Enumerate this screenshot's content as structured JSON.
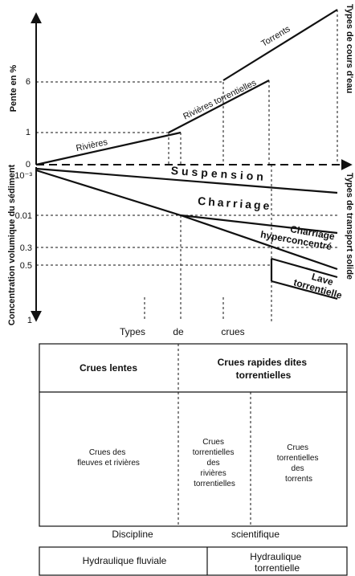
{
  "diagram": {
    "slope_axis": {
      "label": "Pente en %",
      "ticks": [
        "0",
        "1",
        "6"
      ]
    },
    "concentration_axis": {
      "label": "Concentration volumique du sédiment",
      "ticks": [
        "10⁻³",
        "0.01",
        "0.3",
        "0.5",
        "1"
      ]
    },
    "right_labels": [
      "Types de cours d'eau",
      "Types de transport solide"
    ],
    "river_types": [
      "Rivières",
      "Rivières torrentielles",
      "Torrents"
    ],
    "transport_types": [
      "Suspension",
      "Charriage",
      [
        "Charriage",
        "hyperconcentré"
      ],
      [
        "Lave",
        "torrentielle"
      ]
    ],
    "flood_types_caption": [
      "Types",
      "de",
      "crues"
    ],
    "flood_table": {
      "header": [
        "Crues  lentes",
        [
          "Crues rapides dites",
          "torrentielles"
        ]
      ],
      "rows": [
        [
          "Crues des",
          "fleuves et rivières"
        ],
        [
          "Crues",
          "torrentielles",
          "des",
          "rivières",
          "torrentielles"
        ],
        [
          "Crues",
          "torrentielles",
          "des",
          "torrents"
        ]
      ]
    },
    "discipline_caption": [
      "Discipline",
      "scientifique"
    ],
    "discipline_table": [
      "Hydraulique fluviale",
      [
        "Hydraulique",
        "torrentielle"
      ]
    ]
  }
}
